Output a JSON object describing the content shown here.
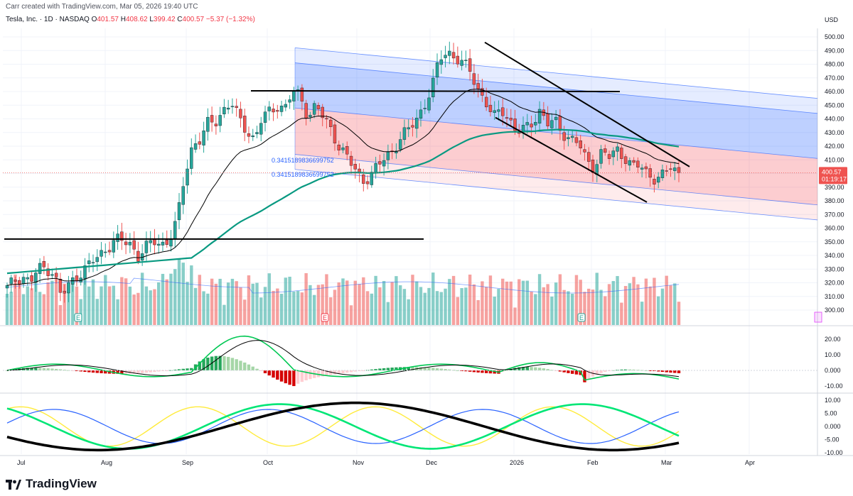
{
  "header": {
    "credit": "Carr created with TradingView.com, Mar 05, 2026 19:40 UTC",
    "symbol": "Tesla, Inc. · 1D · NASDAQ",
    "open_label": "O",
    "open": "401.57",
    "high_label": "H",
    "high": "408.62",
    "low_label": "L",
    "low": "399.42",
    "close_label": "C",
    "close": "400.57",
    "change": "−5.37 (−1.32%)"
  },
  "price_axis": {
    "currency": "USD",
    "ticks": [
      "500.00",
      "490.00",
      "480.00",
      "470.00",
      "460.00",
      "450.00",
      "440.00",
      "430.00",
      "420.00",
      "410.00",
      "400.00",
      "390.00",
      "380.00",
      "370.00",
      "360.00",
      "350.00",
      "340.00",
      "330.00",
      "320.00",
      "310.00",
      "300.00"
    ],
    "last_price": "400.57",
    "countdown": "01:19:17"
  },
  "macd_axis": {
    "ticks": [
      "20.00",
      "10.00",
      "0.000",
      "-10.00"
    ]
  },
  "osc_axis": {
    "ticks": [
      "10.00",
      "5.00",
      "0.000",
      "-5.00",
      "-10.00"
    ]
  },
  "time_axis": {
    "labels": [
      "Jul",
      "Aug",
      "Sep",
      "Oct",
      "Nov",
      "Dec",
      "2026",
      "Feb",
      "Mar",
      "Apr"
    ]
  },
  "annotations": {
    "fib_label_1": "0.3415189836699752",
    "fib_label_2": "0.3415189836699752",
    "earnings_marker": "E",
    "dividend_marker": "E"
  },
  "brand": {
    "name": "TradingView"
  },
  "colors": {
    "up": "#26a69a",
    "down": "#ef5350",
    "accent": "#2962ff"
  },
  "chart_data": [
    {
      "type": "candlestick",
      "title": "Tesla, Inc. · 1D · NASDAQ",
      "ylabel": "USD",
      "ylim": [
        295,
        505
      ],
      "x": [
        "Jul",
        "Aug",
        "Sep",
        "Oct",
        "Nov",
        "Dec",
        "2026",
        "Feb",
        "Mar",
        "Apr"
      ],
      "series_close_by_month_approx": [
        {
          "month": "Jul",
          "values": [
            316,
            322,
            325,
            320,
            330,
            331,
            328
          ]
        },
        {
          "month": "Aug",
          "values": [
            310,
            318,
            325,
            330,
            335,
            340,
            346,
            352,
            350,
            348
          ]
        },
        {
          "month": "Sep",
          "values": [
            340,
            346,
            350,
            348,
            352,
            365,
            398,
            421,
            425,
            436
          ]
        },
        {
          "month": "Oct",
          "values": [
            438,
            447,
            452,
            440,
            432,
            425,
            440,
            445,
            450,
            448,
            460,
            456,
            442
          ]
        },
        {
          "month": "Nov",
          "values": [
            450,
            440,
            432,
            420,
            412,
            403,
            395,
            398,
            405,
            412,
            418,
            426
          ]
        },
        {
          "month": "Dec",
          "values": [
            432,
            440,
            450,
            462,
            484,
            490,
            485,
            480,
            475,
            462,
            452,
            440
          ]
        },
        {
          "month": "2026",
          "values": [
            448,
            440,
            430,
            432,
            438,
            446,
            436,
            438,
            430,
            425,
            422
          ]
        },
        {
          "month": "Feb",
          "values": [
            410,
            405,
            415,
            412,
            418,
            412,
            404,
            406,
            400,
            396
          ]
        },
        {
          "month": "Mar",
          "values": [
            398,
            406,
            400.57
          ]
        }
      ],
      "last": 400.57,
      "horizontal_levels": [
        460,
        352
      ],
      "moving_averages": [
        {
          "name": "short MA",
          "color": "#000000"
        },
        {
          "name": "long MA",
          "color": "#089981"
        }
      ]
    },
    {
      "type": "bar",
      "title": "",
      "ylim": [
        -12,
        28
      ],
      "ticks": [
        20,
        10,
        0,
        -10
      ]
    },
    {
      "type": "line",
      "title": "",
      "ylim": [
        -12,
        12
      ],
      "ticks": [
        10,
        5,
        0,
        -5,
        -10
      ]
    }
  ]
}
